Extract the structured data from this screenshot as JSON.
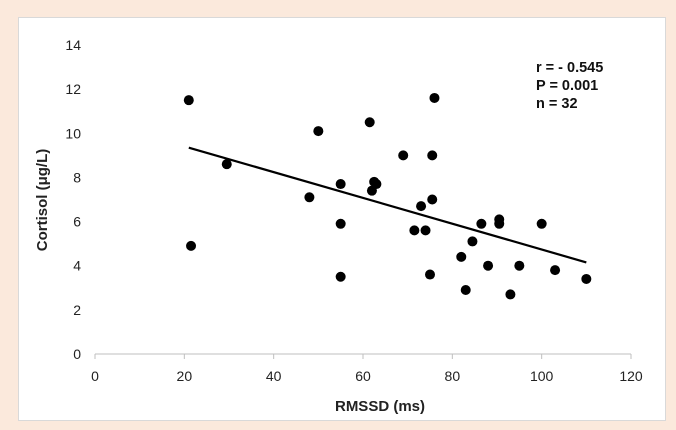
{
  "chart_data": {
    "type": "scatter",
    "title": "",
    "xlabel": "RMSSD (ms)",
    "ylabel": "Cortisol (μg/L)",
    "xlim": [
      0,
      120
    ],
    "ylim": [
      0,
      14
    ],
    "x_ticks": [
      0,
      20,
      40,
      60,
      80,
      100,
      120
    ],
    "y_ticks": [
      0,
      2,
      4,
      6,
      8,
      10,
      12,
      14
    ],
    "grid": false,
    "legend": "none",
    "series": [
      {
        "points": [
          {
            "x": 21,
            "y": 11.5
          },
          {
            "x": 21.5,
            "y": 4.9
          },
          {
            "x": 29.5,
            "y": 8.6
          },
          {
            "x": 48,
            "y": 7.1
          },
          {
            "x": 50,
            "y": 10.1
          },
          {
            "x": 55,
            "y": 7.7
          },
          {
            "x": 55,
            "y": 5.9
          },
          {
            "x": 55,
            "y": 3.5
          },
          {
            "x": 61.5,
            "y": 10.5
          },
          {
            "x": 62,
            "y": 7.4
          },
          {
            "x": 62.5,
            "y": 7.8
          },
          {
            "x": 63,
            "y": 7.7
          },
          {
            "x": 69,
            "y": 9.0
          },
          {
            "x": 71.5,
            "y": 5.6
          },
          {
            "x": 73,
            "y": 6.7
          },
          {
            "x": 74,
            "y": 5.6
          },
          {
            "x": 75,
            "y": 3.6
          },
          {
            "x": 75.5,
            "y": 7.0
          },
          {
            "x": 75.5,
            "y": 9.0
          },
          {
            "x": 76,
            "y": 11.6
          },
          {
            "x": 82,
            "y": 4.4
          },
          {
            "x": 83,
            "y": 2.9
          },
          {
            "x": 84.5,
            "y": 5.1
          },
          {
            "x": 86.5,
            "y": 5.9
          },
          {
            "x": 88,
            "y": 4.0
          },
          {
            "x": 90.5,
            "y": 6.1
          },
          {
            "x": 90.5,
            "y": 5.9
          },
          {
            "x": 93,
            "y": 2.7
          },
          {
            "x": 95,
            "y": 4.0
          },
          {
            "x": 100,
            "y": 5.9
          },
          {
            "x": 103,
            "y": 3.8
          },
          {
            "x": 110,
            "y": 3.4
          }
        ],
        "color": "#000000"
      }
    ],
    "trendline": {
      "x": [
        21,
        110
      ],
      "y": [
        9.35,
        4.15
      ],
      "color": "#000000"
    },
    "annotations": [
      "r = - 0.545",
      "P = 0.001",
      "n = 32"
    ]
  }
}
